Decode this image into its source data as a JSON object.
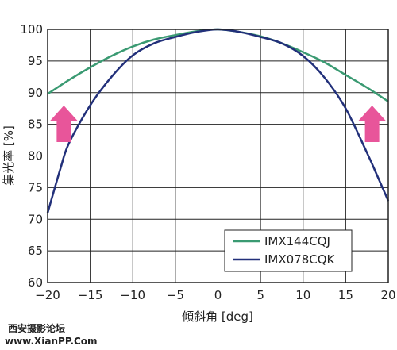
{
  "chart_data": {
    "type": "line",
    "xlabel": "傾斜角 [deg]",
    "ylabel": "集光率 [%]",
    "xlim": [
      -20,
      20
    ],
    "ylim": [
      60,
      100
    ],
    "xticks": [
      -20,
      -15,
      -10,
      -5,
      0,
      5,
      10,
      15,
      20
    ],
    "yticks": [
      60,
      65,
      70,
      75,
      80,
      85,
      90,
      95,
      100
    ],
    "xtick_labels": [
      "−20",
      "−15",
      "−10",
      "−5",
      "0",
      "5",
      "10",
      "15",
      "20"
    ],
    "ytick_labels": [
      "60",
      "65",
      "70",
      "75",
      "80",
      "85",
      "90",
      "95",
      "100"
    ],
    "grid": true,
    "legend_position": "bottom-right",
    "series": [
      {
        "name": "IMX144CQJ",
        "color": "#3a9a72",
        "x": [
          -20,
          -17.5,
          -15,
          -12.5,
          -10,
          -7.5,
          -5,
          -2.5,
          0,
          2.5,
          5,
          7.5,
          10,
          12.5,
          15,
          17.5,
          20
        ],
        "y": [
          89.8,
          92.0,
          94.0,
          95.8,
          97.3,
          98.4,
          99.1,
          99.7,
          100,
          99.6,
          98.9,
          97.8,
          96.4,
          94.8,
          92.8,
          90.8,
          88.6
        ]
      },
      {
        "name": "IMX078CQK",
        "color": "#22307a",
        "x": [
          -20,
          -18.5,
          -17.5,
          -15,
          -12.5,
          -10,
          -7.5,
          -5,
          -2.5,
          0,
          2.5,
          5,
          7.5,
          10,
          12.5,
          15,
          17.5,
          18.5,
          20
        ],
        "y": [
          71.0,
          78.0,
          82.0,
          88.0,
          92.5,
          95.9,
          97.8,
          98.8,
          99.6,
          100,
          99.6,
          98.8,
          97.8,
          95.8,
          92.4,
          87.5,
          80.5,
          77.5,
          72.9
        ]
      }
    ],
    "arrows": [
      {
        "position": "left",
        "color": "#e8559a"
      },
      {
        "position": "right",
        "color": "#e8559a"
      }
    ]
  },
  "watermark": {
    "line1": "西安摄影论坛",
    "line2": "www.XianPP.Com"
  }
}
